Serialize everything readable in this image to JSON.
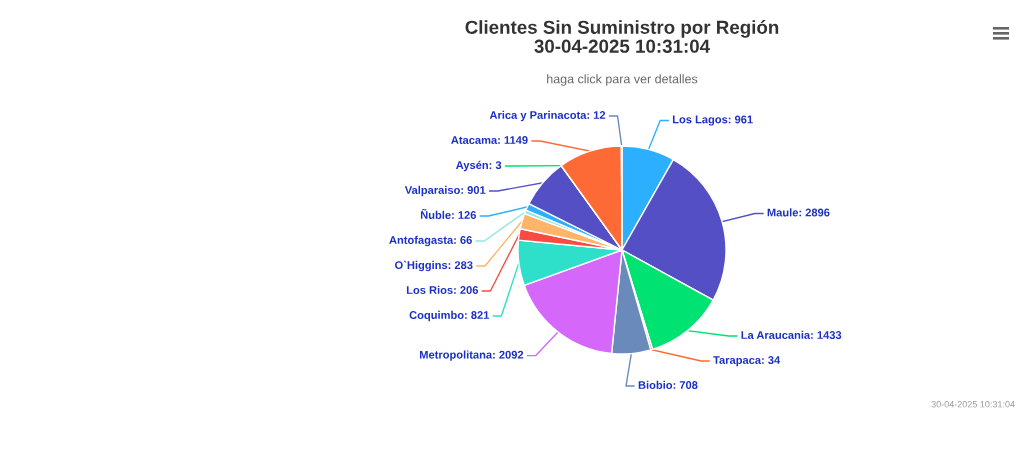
{
  "chart_data": {
    "type": "pie",
    "title": "Clientes Sin Suministro por Región\n30-04-2025 10:31:04",
    "subtitle": "haga click para ver detalles",
    "categories": [
      null,
      null,
      null,
      null,
      null,
      null,
      null,
      null,
      null,
      null,
      null,
      null,
      null,
      null,
      null
    ],
    "values": [
      961,
      2896,
      1433,
      34,
      708,
      2092,
      821,
      206,
      283,
      66,
      126,
      901,
      3,
      1149,
      12
    ],
    "value_labels": [
      "Los Lagos: 961",
      "Maule: 2896",
      "La Araucania: 1433",
      "Tarapaca: 34",
      "Biobio: 708",
      "Metropolitana: 2092",
      "Coquimbo: 821",
      "Los Rios: 206",
      "O`Higgins: 283",
      "Antofagasta: 66",
      "Ñuble: 126",
      "Valparaiso: 901",
      "Aysén: 3",
      "Atacama: 1149",
      "Arica y Parinacota: 12"
    ],
    "colors": [
      "#2caffe",
      "#544fc5",
      "#00e272",
      "#fe6a35",
      "#6b8abc",
      "#d568fb",
      "#2ee0ca",
      "#fa4b42",
      "#feb56a",
      "#91e8e1",
      "#2caffe",
      "#544fc5",
      "#00e272",
      "#fe6a35",
      "#6b8abc"
    ],
    "annotations": [
      "30-04-2025 10:31:04"
    ]
  }
}
